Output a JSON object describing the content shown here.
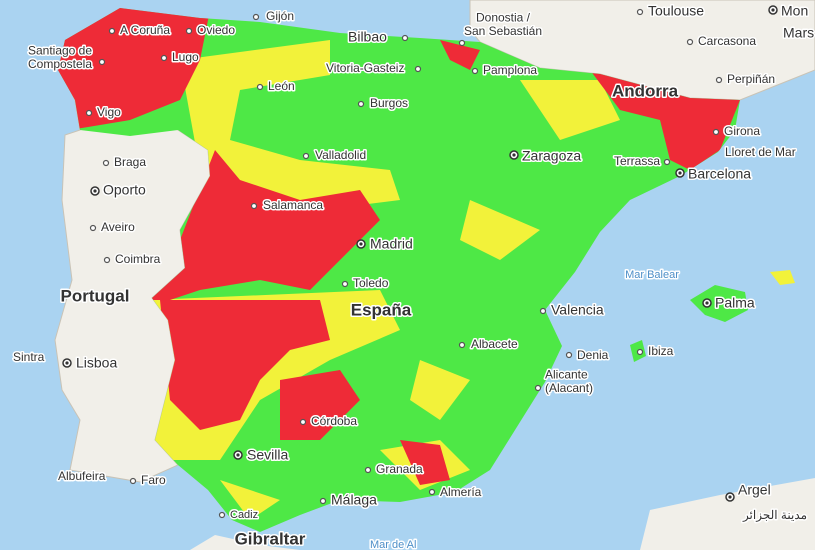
{
  "map": {
    "places": [
      {
        "name": "Gijón"
      },
      {
        "name": "A Coruña"
      },
      {
        "name": "Oviedo"
      },
      {
        "name": [
          "Santiago de",
          "Compostela"
        ]
      },
      {
        "name": "Lugo"
      },
      {
        "name": "Vigo"
      },
      {
        "name": "León"
      },
      {
        "name": "Bilbao"
      },
      {
        "name": "Vitoria-Gasteiz"
      },
      {
        "name": "Burgos"
      },
      {
        "name": [
          "Donostia /",
          "San Sebastián"
        ]
      },
      {
        "name": "Pamplona"
      },
      {
        "name": "Toulouse"
      },
      {
        "name": "Mon"
      },
      {
        "name": "Mars"
      },
      {
        "name": "Carcasona"
      },
      {
        "name": "Perpiñán"
      },
      {
        "name": "Andorra"
      },
      {
        "name": "Girona"
      },
      {
        "name": "Lloret de Mar"
      },
      {
        "name": "Barcelona"
      },
      {
        "name": "Terrassa"
      },
      {
        "name": "Zaragoza"
      },
      {
        "name": "Valladolid"
      },
      {
        "name": "Braga"
      },
      {
        "name": "Oporto"
      },
      {
        "name": "Aveiro"
      },
      {
        "name": "Coimbra"
      },
      {
        "name": "Salamanca"
      },
      {
        "name": "Madrid"
      },
      {
        "name": "Portugal"
      },
      {
        "name": "Toledo"
      },
      {
        "name": "España"
      },
      {
        "name": "Valencia"
      },
      {
        "name": "Mar Balear"
      },
      {
        "name": "Palma"
      },
      {
        "name": "Ibiza"
      },
      {
        "name": "Denia"
      },
      {
        "name": "Albacete"
      },
      {
        "name": [
          "Alicante",
          "(Alacant)"
        ]
      },
      {
        "name": "Sintra"
      },
      {
        "name": "Lisboa"
      },
      {
        "name": "Córdoba"
      },
      {
        "name": "Sevilla"
      },
      {
        "name": "Granada"
      },
      {
        "name": "Almería"
      },
      {
        "name": "Málaga"
      },
      {
        "name": "Albufeira"
      },
      {
        "name": "Faro"
      },
      {
        "name": "Cadiz"
      },
      {
        "name": "Gibraltar"
      },
      {
        "name": "Argel"
      },
      {
        "name": "مدينة الجزائر"
      },
      {
        "name": "Mar de Al"
      }
    ]
  }
}
